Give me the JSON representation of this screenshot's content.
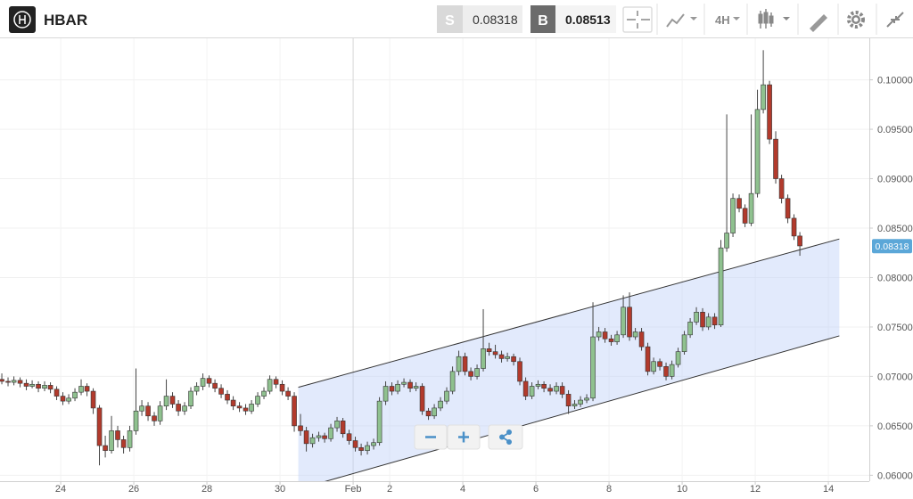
{
  "header": {
    "symbol": "HBAR",
    "sell_label": "S",
    "sell_price": "0.08318",
    "buy_label": "B",
    "buy_price": "0.08513",
    "interval": "4H"
  },
  "chart_data": {
    "type": "candlestick",
    "up_color": "#8fc18f",
    "down_color": "#b23a2c",
    "grid": true,
    "xlim": [
      22.34,
      46.12
    ],
    "ylim": [
      0.0594,
      0.1042
    ],
    "xticks": [
      24,
      26,
      28,
      30,
      {
        "value": 32,
        "label": "Feb"
      },
      {
        "value": 33,
        "label": "2"
      },
      {
        "value": 35,
        "label": "4"
      },
      {
        "value": 37,
        "label": "6"
      },
      {
        "value": 39,
        "label": "8"
      },
      {
        "value": 41,
        "label": "10"
      },
      {
        "value": 43,
        "label": "12"
      },
      {
        "value": 45,
        "label": "14"
      }
    ],
    "yticks": [
      {
        "value": 0.06,
        "label": "0.06000"
      },
      {
        "value": 0.065,
        "label": "0.06500"
      },
      {
        "value": 0.07,
        "label": "0.07000"
      },
      {
        "value": 0.075,
        "label": "0.07500"
      },
      {
        "value": 0.08,
        "label": "0.08000"
      },
      {
        "value": 0.085,
        "label": "0.08500"
      },
      {
        "value": 0.09,
        "label": "0.09000"
      },
      {
        "value": 0.095,
        "label": "0.09500"
      },
      {
        "value": 0.1,
        "label": "0.10000"
      }
    ],
    "last_price": {
      "value": 0.08318,
      "label": "0.08318"
    },
    "channel": {
      "upper": [
        [
          30.5,
          0.0689
        ],
        [
          45.3,
          0.0839
        ]
      ],
      "lower": [
        [
          30.5,
          0.0586
        ],
        [
          45.3,
          0.0741
        ]
      ]
    },
    "x": [
      22.39,
      22.56,
      22.72,
      22.89,
      23.06,
      23.22,
      23.39,
      23.56,
      23.72,
      23.89,
      24.06,
      24.22,
      24.39,
      24.56,
      24.72,
      24.89,
      25.06,
      25.22,
      25.39,
      25.56,
      25.72,
      25.89,
      26.06,
      26.22,
      26.39,
      26.56,
      26.72,
      26.89,
      27.06,
      27.22,
      27.39,
      27.56,
      27.72,
      27.89,
      28.06,
      28.22,
      28.39,
      28.56,
      28.72,
      28.89,
      29.06,
      29.22,
      29.39,
      29.56,
      29.72,
      29.89,
      30.06,
      30.22,
      30.39,
      30.56,
      30.72,
      30.89,
      31.06,
      31.22,
      31.39,
      31.56,
      31.72,
      31.89,
      32.06,
      32.22,
      32.39,
      32.56,
      32.72,
      32.89,
      33.06,
      33.22,
      33.39,
      33.56,
      33.72,
      33.89,
      34.06,
      34.22,
      34.39,
      34.56,
      34.72,
      34.89,
      35.06,
      35.22,
      35.39,
      35.56,
      35.72,
      35.89,
      36.06,
      36.22,
      36.39,
      36.56,
      36.72,
      36.89,
      37.06,
      37.22,
      37.39,
      37.56,
      37.72,
      37.89,
      38.06,
      38.22,
      38.39,
      38.56,
      38.72,
      38.89,
      39.06,
      39.22,
      39.39,
      39.56,
      39.72,
      39.89,
      40.06,
      40.22,
      40.39,
      40.56,
      40.72,
      40.89,
      41.06,
      41.22,
      41.39,
      41.56,
      41.72,
      41.89,
      42.06,
      42.22,
      42.39,
      42.56,
      42.72,
      42.89,
      43.06,
      43.22,
      43.39,
      43.56,
      43.72,
      43.89,
      44.06,
      44.22
    ],
    "ohlc": [
      [
        0.0697,
        0.0703,
        0.0692,
        0.0695
      ],
      [
        0.0695,
        0.0699,
        0.069,
        0.0694
      ],
      [
        0.0694,
        0.07,
        0.0691,
        0.0696
      ],
      [
        0.0696,
        0.0699,
        0.0689,
        0.0693
      ],
      [
        0.0693,
        0.0697,
        0.0686,
        0.069
      ],
      [
        0.069,
        0.0696,
        0.0688,
        0.0692
      ],
      [
        0.0692,
        0.0695,
        0.0684,
        0.0688
      ],
      [
        0.0688,
        0.0695,
        0.0685,
        0.0691
      ],
      [
        0.0691,
        0.0694,
        0.0683,
        0.0687
      ],
      [
        0.0687,
        0.069,
        0.0676,
        0.068
      ],
      [
        0.068,
        0.0684,
        0.0671,
        0.0675
      ],
      [
        0.0675,
        0.0682,
        0.0672,
        0.0678
      ],
      [
        0.0678,
        0.0688,
        0.0675,
        0.0684
      ],
      [
        0.0684,
        0.0697,
        0.0681,
        0.069
      ],
      [
        0.069,
        0.0693,
        0.068,
        0.0685
      ],
      [
        0.0685,
        0.0688,
        0.0662,
        0.0668
      ],
      [
        0.0668,
        0.0671,
        0.061,
        0.063
      ],
      [
        0.063,
        0.064,
        0.0618,
        0.0625
      ],
      [
        0.0625,
        0.066,
        0.0622,
        0.0645
      ],
      [
        0.0645,
        0.065,
        0.0628,
        0.0636
      ],
      [
        0.0636,
        0.064,
        0.0622,
        0.0628
      ],
      [
        0.0628,
        0.065,
        0.0624,
        0.0645
      ],
      [
        0.0645,
        0.0708,
        0.0641,
        0.0665
      ],
      [
        0.0665,
        0.0676,
        0.066,
        0.067
      ],
      [
        0.067,
        0.0674,
        0.0655,
        0.066
      ],
      [
        0.066,
        0.0664,
        0.065,
        0.0655
      ],
      [
        0.0655,
        0.0675,
        0.0651,
        0.067
      ],
      [
        0.067,
        0.0697,
        0.0666,
        0.068
      ],
      [
        0.068,
        0.0684,
        0.0668,
        0.0672
      ],
      [
        0.0672,
        0.0676,
        0.066,
        0.0665
      ],
      [
        0.0665,
        0.0674,
        0.0661,
        0.067
      ],
      [
        0.067,
        0.0689,
        0.0667,
        0.0685
      ],
      [
        0.0685,
        0.0694,
        0.0681,
        0.069
      ],
      [
        0.069,
        0.0703,
        0.0686,
        0.0698
      ],
      [
        0.0698,
        0.0701,
        0.0689,
        0.0693
      ],
      [
        0.0693,
        0.0697,
        0.0684,
        0.0688
      ],
      [
        0.0688,
        0.0692,
        0.0678,
        0.0682
      ],
      [
        0.0682,
        0.0686,
        0.0672,
        0.0676
      ],
      [
        0.0676,
        0.068,
        0.0666,
        0.067
      ],
      [
        0.067,
        0.0674,
        0.0664,
        0.0668
      ],
      [
        0.0668,
        0.0672,
        0.0661,
        0.0665
      ],
      [
        0.0665,
        0.0676,
        0.0662,
        0.0672
      ],
      [
        0.0672,
        0.0684,
        0.0669,
        0.068
      ],
      [
        0.068,
        0.0689,
        0.0677,
        0.0685
      ],
      [
        0.0685,
        0.0701,
        0.0682,
        0.0697
      ],
      [
        0.0697,
        0.07,
        0.0688,
        0.0692
      ],
      [
        0.0692,
        0.0696,
        0.0681,
        0.0685
      ],
      [
        0.0685,
        0.0689,
        0.0676,
        0.068
      ],
      [
        0.068,
        0.0684,
        0.0644,
        0.065
      ],
      [
        0.065,
        0.0662,
        0.064,
        0.0645
      ],
      [
        0.0645,
        0.0649,
        0.0624,
        0.0632
      ],
      [
        0.0632,
        0.0642,
        0.0628,
        0.0638
      ],
      [
        0.0638,
        0.0644,
        0.0634,
        0.064
      ],
      [
        0.064,
        0.0643,
        0.0633,
        0.0637
      ],
      [
        0.0637,
        0.0652,
        0.0634,
        0.0648
      ],
      [
        0.0648,
        0.0659,
        0.0644,
        0.0655
      ],
      [
        0.0655,
        0.0658,
        0.0638,
        0.0642
      ],
      [
        0.0642,
        0.0646,
        0.0631,
        0.0635
      ],
      [
        0.0635,
        0.0639,
        0.0624,
        0.0628
      ],
      [
        0.0628,
        0.0632,
        0.062,
        0.0625
      ],
      [
        0.0625,
        0.0634,
        0.0621,
        0.063
      ],
      [
        0.063,
        0.0637,
        0.0626,
        0.0633
      ],
      [
        0.0633,
        0.0679,
        0.063,
        0.0675
      ],
      [
        0.0675,
        0.0695,
        0.0671,
        0.069
      ],
      [
        0.069,
        0.0694,
        0.0681,
        0.0685
      ],
      [
        0.0685,
        0.0696,
        0.0682,
        0.0692
      ],
      [
        0.0692,
        0.0698,
        0.0689,
        0.0694
      ],
      [
        0.0694,
        0.0697,
        0.0684,
        0.0688
      ],
      [
        0.0688,
        0.0694,
        0.0685,
        0.069
      ],
      [
        0.069,
        0.0693,
        0.0661,
        0.0665
      ],
      [
        0.0665,
        0.0668,
        0.0656,
        0.066
      ],
      [
        0.066,
        0.0672,
        0.0657,
        0.0668
      ],
      [
        0.0668,
        0.0679,
        0.0665,
        0.0675
      ],
      [
        0.0675,
        0.0689,
        0.0672,
        0.0685
      ],
      [
        0.0685,
        0.071,
        0.0682,
        0.0705
      ],
      [
        0.0705,
        0.0726,
        0.0701,
        0.072
      ],
      [
        0.072,
        0.0724,
        0.0701,
        0.0705
      ],
      [
        0.0705,
        0.0709,
        0.0696,
        0.07
      ],
      [
        0.07,
        0.0712,
        0.0697,
        0.0708
      ],
      [
        0.0708,
        0.0768,
        0.0705,
        0.0728
      ],
      [
        0.0728,
        0.0734,
        0.0721,
        0.0725
      ],
      [
        0.0725,
        0.0732,
        0.0718,
        0.0722
      ],
      [
        0.0722,
        0.0726,
        0.0714,
        0.0718
      ],
      [
        0.0718,
        0.0724,
        0.0715,
        0.072
      ],
      [
        0.072,
        0.0723,
        0.0711,
        0.0715
      ],
      [
        0.0715,
        0.0719,
        0.0691,
        0.0695
      ],
      [
        0.0695,
        0.0699,
        0.0676,
        0.068
      ],
      [
        0.068,
        0.0694,
        0.0677,
        0.069
      ],
      [
        0.069,
        0.0696,
        0.0687,
        0.0692
      ],
      [
        0.0692,
        0.0695,
        0.0684,
        0.0688
      ],
      [
        0.0688,
        0.0692,
        0.0681,
        0.0685
      ],
      [
        0.0685,
        0.0694,
        0.0682,
        0.069
      ],
      [
        0.069,
        0.0694,
        0.0678,
        0.0682
      ],
      [
        0.0682,
        0.0686,
        0.0662,
        0.067
      ],
      [
        0.067,
        0.0676,
        0.0667,
        0.0672
      ],
      [
        0.0672,
        0.068,
        0.0669,
        0.0676
      ],
      [
        0.0676,
        0.0682,
        0.0673,
        0.0678
      ],
      [
        0.0678,
        0.0775,
        0.0675,
        0.074
      ],
      [
        0.074,
        0.075,
        0.0736,
        0.0745
      ],
      [
        0.0745,
        0.0749,
        0.0734,
        0.0738
      ],
      [
        0.0738,
        0.0742,
        0.0731,
        0.0735
      ],
      [
        0.0735,
        0.0746,
        0.0732,
        0.0742
      ],
      [
        0.0742,
        0.0782,
        0.0739,
        0.077
      ],
      [
        0.077,
        0.0785,
        0.0736,
        0.074
      ],
      [
        0.074,
        0.0749,
        0.0737,
        0.0745
      ],
      [
        0.0745,
        0.0749,
        0.0726,
        0.073
      ],
      [
        0.073,
        0.0734,
        0.0701,
        0.0705
      ],
      [
        0.0705,
        0.0719,
        0.0702,
        0.0715
      ],
      [
        0.0715,
        0.0718,
        0.0706,
        0.071
      ],
      [
        0.071,
        0.0714,
        0.0696,
        0.07
      ],
      [
        0.07,
        0.0716,
        0.0697,
        0.0712
      ],
      [
        0.0712,
        0.0729,
        0.0709,
        0.0725
      ],
      [
        0.0725,
        0.0746,
        0.0722,
        0.0742
      ],
      [
        0.0742,
        0.0759,
        0.0739,
        0.0755
      ],
      [
        0.0755,
        0.077,
        0.0752,
        0.0765
      ],
      [
        0.0765,
        0.0769,
        0.0746,
        0.075
      ],
      [
        0.075,
        0.0764,
        0.0747,
        0.076
      ],
      [
        0.076,
        0.0764,
        0.0748,
        0.0752
      ],
      [
        0.0752,
        0.0838,
        0.075,
        0.083
      ],
      [
        0.083,
        0.0965,
        0.0826,
        0.0845
      ],
      [
        0.0845,
        0.0885,
        0.0841,
        0.088
      ],
      [
        0.088,
        0.0884,
        0.0866,
        0.087
      ],
      [
        0.087,
        0.0874,
        0.0851,
        0.0855
      ],
      [
        0.0855,
        0.0965,
        0.0852,
        0.0885
      ],
      [
        0.0885,
        0.099,
        0.0881,
        0.097
      ],
      [
        0.097,
        0.103,
        0.0966,
        0.0995
      ],
      [
        0.0995,
        0.0999,
        0.0935,
        0.094
      ],
      [
        0.094,
        0.0948,
        0.0895,
        0.09
      ],
      [
        0.09,
        0.0904,
        0.0875,
        0.088
      ],
      [
        0.088,
        0.0884,
        0.0855,
        0.086
      ],
      [
        0.086,
        0.0864,
        0.0838,
        0.0842
      ],
      [
        0.0842,
        0.0846,
        0.0822,
        0.0832
      ]
    ]
  }
}
